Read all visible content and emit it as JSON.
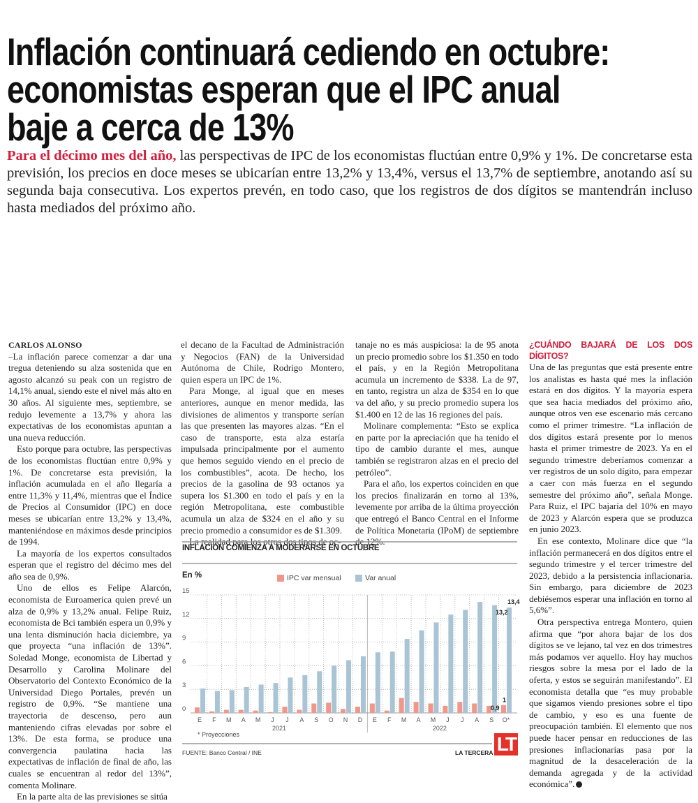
{
  "headline": {
    "lines": [
      "Inflación continuará cediendo en octubre:",
      "economistas esperan que el IPC anual",
      "baje a cerca de 13%"
    ]
  },
  "lead": {
    "highlight": "Para el décimo mes del año,",
    "text": " las perspectivas de IPC de los economistas fluctúan entre 0,9% y 1%. De concretarse esta previsión, los precios en doce meses se ubicarían entre 13,2% y 13,4%, versus el 13,7% de septiembre, anotando así su segunda baja consecutiva. Los expertos prevén, en todo caso, que los registros de dos dígitos se mantendrán incluso hasta mediados del próximo año."
  },
  "article": {
    "byline": "CARLOS ALONSO",
    "col1": [
      "–La inflación parece comenzar a dar una tregua deteniendo su alza sostenida que en agosto alcanzó su peak con un registro de 14,1% anual, siendo este el nivel más alto en 30 años. Al siguiente mes, septiembre, se redujo levemente a 13,7% y ahora las expectativas de los economistas apuntan a una nueva reducción.",
      "Esto porque para octubre, las perspectivas de los economistas fluctúan entre 0,9% y 1%. De concretarse esta previsión, la inflación acumulada en el año llegaría a entre 11,3% y 11,4%, mientras que el Índice de Precios al Consumidor (IPC) en doce meses se ubicarían entre 13,2% y 13,4%, manteniéndose en máximos desde principios de 1994.",
      "La mayoría de los expertos consultados esperan que el registro del décimo mes del año sea de 0,9%.",
      "Uno de ellos es Felipe Alarcón, economista de Euroamerica quien prevé un alza de 0,9% y 13,2% anual. Felipe Ruiz, economista de Bci también espera un 0,9% y una lenta disminución hacia diciembre, ya que proyecta “una inflación de 13%”. Soledad Monge, economista de Libertad y Desarrollo y Carolina Molinare del Observatorio del Contexto Económico de la Universidad Diego Portales, prevén un registro de 0,9%. “Se mantiene una trayectoria de descenso, pero aun manteniendo cifras elevadas por sobre el 13%. De esta forma, se produce una convergencia paulatina hacia las expectativas de inflación de final de año, las cuales se encuentran al redor del 13%”, comenta Molinare.",
      "En la parte alta de las previsiones se sitúa"
    ],
    "col2": [
      "el decano de la Facultad de Administración y Negocios (FAN) de la Universidad Autónoma de Chile, Rodrigo Montero, quien espera un IPC de 1%.",
      "Para Monge, al igual que en meses anteriores, aunque en menor medida, las divisiones de alimentos y transporte serían las que presenten las mayores alzas. “En el caso de transporte, esta alza estaría impulsada principalmente por el aumento que hemos seguido viendo en el precio de los combustibles”, acota. De hecho, los precios de la gasolina de 93 octanos ya supera los $1.300 en todo el país y en la región Metropolitana, este combustible acumula un alza de $324 en el año y su precio promedio a consumidor es de $1.309.",
      "La realidad para los otros dos tipos de oc-"
    ],
    "col3": [
      "tanaje no es más auspiciosa: la de 95 anota un precio promedio sobre los $1.350 en todo el país, y en la Región Metropolitana acumula un incremento de $338. La de 97, en tanto, registra un alza de $354 en lo que va del año, y su precio promedio supera los $1.400 en 12 de las 16 regiones del país.",
      "Molinare complementa: “Esto se explica en parte por la apreciación que ha tenido el tipo de cambio durante el mes, aunque también se registraron alzas en el precio del petróleo”.",
      "Para el año, los expertos coinciden en que los precios finalizarán en torno al 13%, levemente por arriba de la última proyección que entregó el Banco Central en el Informe de Política Monetaria (IPoM) de septiembre de 12%."
    ],
    "col4_subhead": "¿CUÁNDO BAJARÁ DE LOS DOS DÍGITOS?",
    "col4": [
      "Una de las preguntas que está presente entre los analistas es hasta qué mes la inflación estará en dos dígitos. Y la mayoría espera que sea hacia mediados del próximo año, aunque otros ven ese escenario más cercano como el primer trimestre. “La inflación de dos dígitos estará presente por lo menos hasta el primer trimestre de 2023. Ya en el segundo trimestre deberíamos comenzar a ver registros de un solo dígito, para empezar a caer con más fuerza en el segundo semestre del próximo año”, señala Monge. Para Ruiz, el IPC bajaría del 10% en mayo de 2023 y Alarcón espera que se produzca en junio 2023.",
      "En ese contexto, Molinare dice que “la inflación permanecerá en dos dígitos entre el segundo trimestre y el tercer trimestre del 2023, debido a la persistencia inflacionaria. Sin embargo, para diciembre de 2023 debiésemos esperar una inflación en torno al 5,6%”.",
      "Otra perspectiva entrega Montero, quien afirma que “por ahora bajar de los dos dígitos se ve lejano, tal vez en dos trimestres más podamos ver aquello. Hoy hay muchos riesgos sobre la mesa por el lado de la oferta, y estos se seguirán manifestando”. El economista detalla que “es muy probable que sigamos viendo presiones sobre el tipo de cambio, y eso es una fuente de preocupación también. El elemento que nos puede hacer pensar en reducciones de las presiones inflacionarias pasa por la magnitud de la desaceleración de la demanda agregada y de la actividad económica”."
    ],
    "end_mark_icon": "end-of-article-icon"
  },
  "chart_data": {
    "type": "bar",
    "title": "INFLACIÓN COMIENZA A MODERARSE EN OCTUBRE",
    "ylabel": "En %",
    "ylim": [
      0,
      15
    ],
    "yticks": [
      "0",
      "3",
      "6",
      "9",
      "12",
      "15"
    ],
    "grid": true,
    "legend_position": "top",
    "categories": [
      "E",
      "F",
      "M",
      "A",
      "M",
      "J",
      "J",
      "A",
      "S",
      "O",
      "N",
      "D",
      "E",
      "F",
      "M",
      "A",
      "M",
      "J",
      "J",
      "A",
      "S",
      "O*"
    ],
    "years": [
      {
        "label": "2021",
        "months": 12
      },
      {
        "label": "2022",
        "months": 10
      }
    ],
    "series": [
      {
        "name": "IPC var mensual",
        "color": "#f0978a",
        "values": [
          0.7,
          0.2,
          0.4,
          0.4,
          0.3,
          0.1,
          0.8,
          0.4,
          1.2,
          1.3,
          0.5,
          0.8,
          1.2,
          0.3,
          1.9,
          1.4,
          1.2,
          0.9,
          1.4,
          1.2,
          0.9,
          1.0
        ]
      },
      {
        "name": "Var anual",
        "color": "#a9c4d4",
        "values": [
          3.1,
          2.8,
          2.9,
          3.3,
          3.6,
          3.8,
          4.5,
          4.8,
          5.3,
          6.0,
          6.7,
          7.2,
          7.7,
          7.8,
          9.4,
          10.5,
          11.5,
          12.5,
          13.1,
          14.1,
          13.7,
          13.4
        ]
      }
    ],
    "annotations": {
      "anual_high": "13,4",
      "anual_low": "13,2",
      "mensual_high": "1",
      "mensual_low": "0,9"
    },
    "note": "* Proyecciones",
    "source": "FUENTE: Banco Central / INE",
    "brand": "LA TERCERA",
    "logo_text": "LT",
    "logo_color": "#e4322b"
  }
}
